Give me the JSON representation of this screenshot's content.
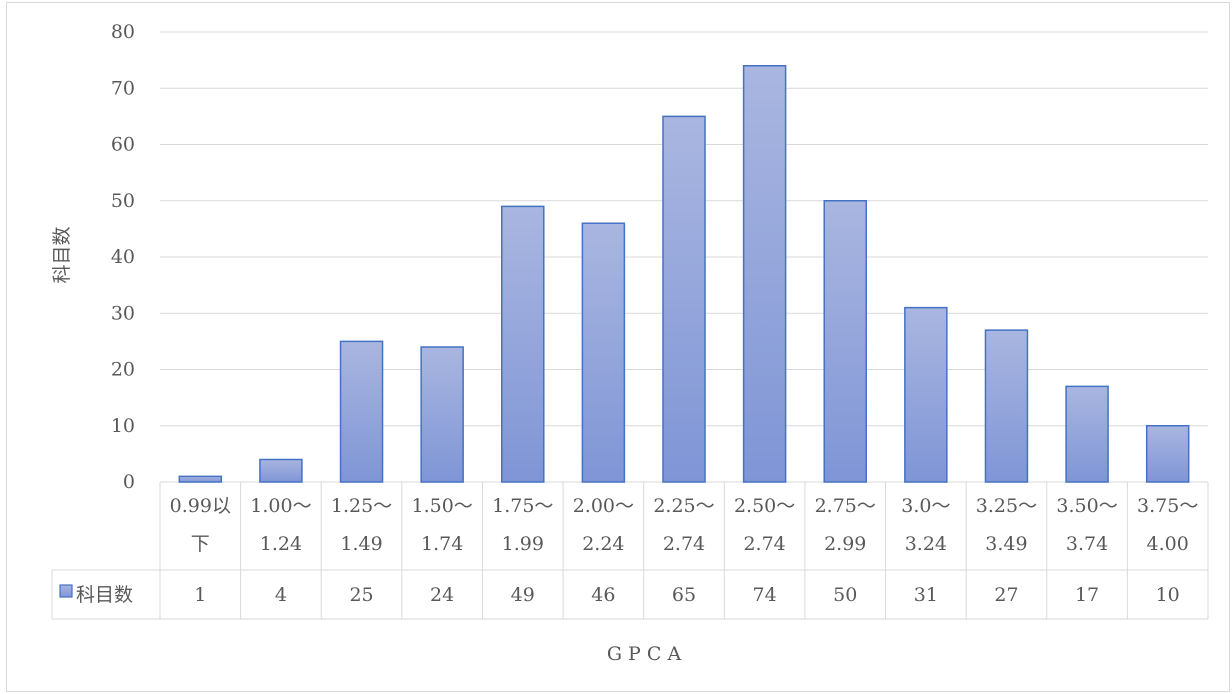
{
  "chart_data": {
    "type": "bar",
    "categories": [
      [
        "0.99以",
        "下"
      ],
      [
        "1.00〜",
        "1.24"
      ],
      [
        "1.25〜",
        "1.49"
      ],
      [
        "1.50〜",
        "1.74"
      ],
      [
        "1.75〜",
        "1.99"
      ],
      [
        "2.00〜",
        "2.24"
      ],
      [
        "2.25〜",
        "2.74"
      ],
      [
        "2.50〜",
        "2.74"
      ],
      [
        "2.75〜",
        "2.99"
      ],
      [
        "3.0〜",
        "3.24"
      ],
      [
        "3.25〜",
        "3.49"
      ],
      [
        "3.50〜",
        "3.74"
      ],
      [
        "3.75〜",
        "4.00"
      ]
    ],
    "series": [
      {
        "name": "科目数",
        "values": [
          1,
          4,
          25,
          24,
          49,
          46,
          65,
          74,
          50,
          31,
          27,
          17,
          10
        ]
      }
    ],
    "xlabel": "G P C A",
    "ylabel": "科目数",
    "ylim": [
      0,
      80
    ],
    "yticks": [
      0,
      10,
      20,
      30,
      40,
      50,
      60,
      70,
      80
    ],
    "grid": true,
    "legend": "data-table",
    "colors": {
      "bar_top": "#a9b6e0",
      "bar_bottom": "#7f95d6",
      "bar_border": "#4472c4",
      "grid": "#d9d9d9",
      "text": "#595959"
    }
  }
}
